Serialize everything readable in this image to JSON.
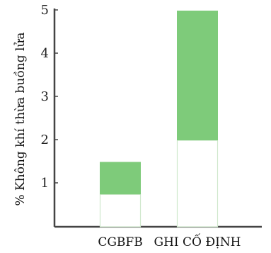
{
  "chart_data": {
    "type": "bar",
    "subtype": "floating-range",
    "ylabel": "% Không khí thừa buồng lửa",
    "xlabel": "",
    "ylim": [
      0,
      5
    ],
    "yticks": [
      1,
      2,
      3,
      4,
      5
    ],
    "grid": false,
    "categories": [
      "CGBFB",
      "GHI CỐ ĐỊNH"
    ],
    "ranges": [
      {
        "category": "CGBFB",
        "low": 0.75,
        "high": 1.5
      },
      {
        "category": "GHI CỐ ĐỊNH",
        "low": 2.0,
        "high": 5.0
      }
    ],
    "colors": {
      "bar_fill": "#7ecb7a",
      "base_outline": "#cfe8cc",
      "axis": "#444444"
    }
  }
}
